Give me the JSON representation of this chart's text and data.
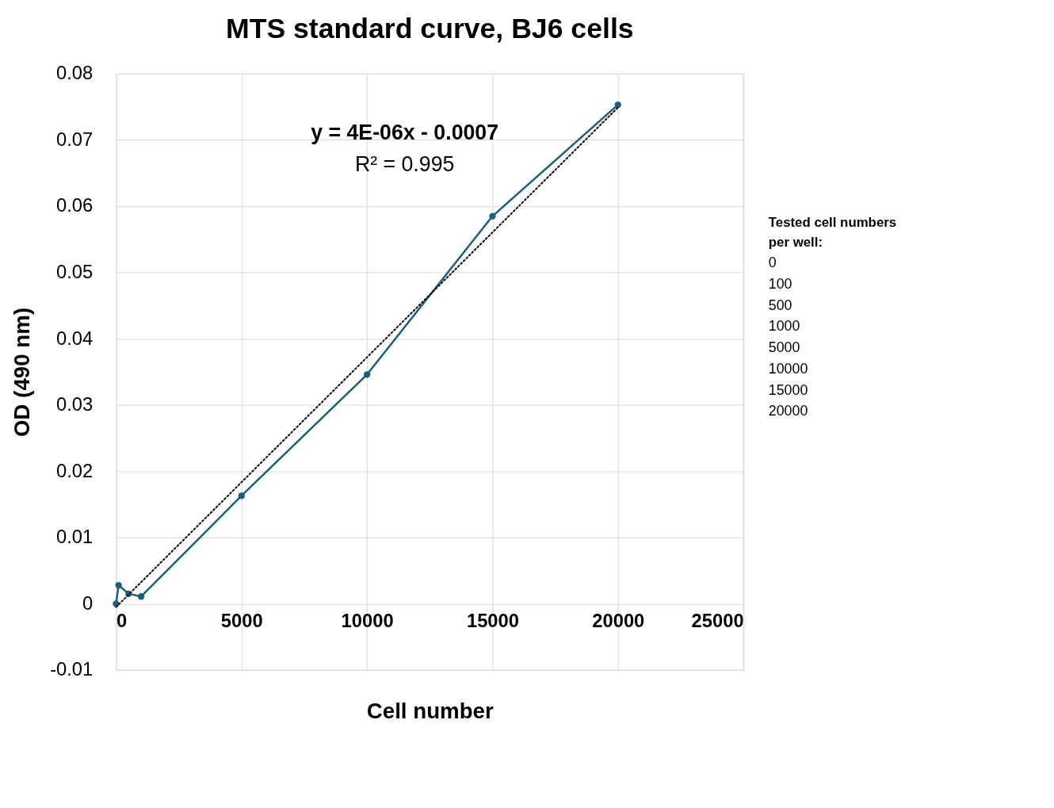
{
  "chart_data": {
    "type": "line",
    "title": "MTS standard curve, BJ6 cells",
    "xlabel": "Cell number",
    "ylabel": "OD (490 nm)",
    "x": [
      0,
      100,
      500,
      1000,
      5000,
      10000,
      15000,
      20000
    ],
    "series": [
      {
        "color": "#1b5e7b",
        "values": [
          0,
          0.0028,
          0.0015,
          0.0011,
          0.0163,
          0.0346,
          0.0585,
          0.0753
        ],
        "marker": "circle",
        "line_style": "solid"
      },
      {
        "type": "line",
        "color": "#000000",
        "x": [
          0,
          20000
        ],
        "values": [
          -0.0005,
          0.0749
        ],
        "marker": "none",
        "line_style": "dotted"
      }
    ],
    "xlim": [
      0,
      25000
    ],
    "xticks": [
      0,
      5000,
      10000,
      15000,
      20000,
      25000
    ],
    "ylim": [
      -0.01,
      0.08
    ],
    "yticks": [
      -0.01,
      0,
      0.01,
      0.02,
      0.03,
      0.04,
      0.05,
      0.06,
      0.07,
      0.08
    ],
    "grid": true,
    "annotations": [
      "y = 4E-06x - 0.0007",
      "R² = 0.995",
      "Tested cell numbers",
      "per well:",
      "0",
      "100",
      "500",
      "1000",
      "5000",
      "10000",
      "15000",
      "20000"
    ]
  }
}
